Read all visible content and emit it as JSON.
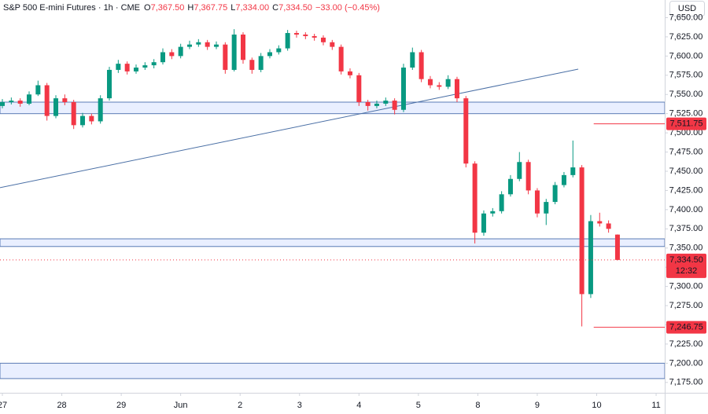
{
  "header": {
    "symbol": "S&P 500 E-mini Futures · 1h · CME",
    "ohlc": [
      {
        "key": "O",
        "value": "7,367.50"
      },
      {
        "key": "H",
        "value": "7,367.75"
      },
      {
        "key": "L",
        "value": "7,334.00"
      },
      {
        "key": "C",
        "value": "7,334.50"
      }
    ],
    "change": "−33.00 (−0.45%)",
    "currency": "USD"
  },
  "chart_data": {
    "type": "candlestick",
    "up_color": "#089981",
    "down_color": "#f23645",
    "xlim": [
      -0.04,
      11.145
    ],
    "ylim": [
      7161.5,
      7673
    ],
    "xticks": [
      {
        "value": 0,
        "label": "27"
      },
      {
        "value": 1,
        "label": "28"
      },
      {
        "value": 2,
        "label": "29"
      },
      {
        "value": 3,
        "label": "Jun"
      },
      {
        "value": 4,
        "label": "2"
      },
      {
        "value": 5,
        "label": "3"
      },
      {
        "value": 6,
        "label": "4"
      },
      {
        "value": 7,
        "label": "5"
      },
      {
        "value": 8,
        "label": "8"
      },
      {
        "value": 9,
        "label": "9"
      },
      {
        "value": 10,
        "label": "10"
      },
      {
        "value": 11,
        "label": "11"
      }
    ],
    "yticks": [
      {
        "value": 7175,
        "label": "7,175.00"
      },
      {
        "value": 7200,
        "label": "7,200.00"
      },
      {
        "value": 7225,
        "label": "7,225.00"
      },
      {
        "value": 7250,
        "label": "7,250.00"
      },
      {
        "value": 7275,
        "label": "7,275.00"
      },
      {
        "value": 7300,
        "label": "7,300.00"
      },
      {
        "value": 7325,
        "label": "7,325.00"
      },
      {
        "value": 7350,
        "label": "7,350.00"
      },
      {
        "value": 7375,
        "label": "7,375.00"
      },
      {
        "value": 7400,
        "label": "7,400.00"
      },
      {
        "value": 7425,
        "label": "7,425.00"
      },
      {
        "value": 7450,
        "label": "7,450.00"
      },
      {
        "value": 7475,
        "label": "7,475.00"
      },
      {
        "value": 7500,
        "label": "7,500.00"
      },
      {
        "value": 7525,
        "label": "7,525.00"
      },
      {
        "value": 7550,
        "label": "7,550.00"
      },
      {
        "value": 7575,
        "label": "7,575.00"
      },
      {
        "value": 7600,
        "label": "7,600.00"
      },
      {
        "value": 7625,
        "label": "7,625.00"
      },
      {
        "value": 7650,
        "label": "7,650.00"
      }
    ],
    "x": [
      0,
      0.15,
      0.3,
      0.45,
      0.6,
      0.75,
      0.9,
      1.05,
      1.2,
      1.35,
      1.5,
      1.65,
      1.8,
      1.95,
      2.1,
      2.25,
      2.4,
      2.55,
      2.7,
      2.85,
      3,
      3.15,
      3.3,
      3.45,
      3.6,
      3.75,
      3.9,
      4.05,
      4.2,
      4.35,
      4.5,
      4.65,
      4.8,
      4.95,
      5.1,
      5.25,
      5.4,
      5.55,
      5.7,
      5.85,
      6,
      6.15,
      6.3,
      6.45,
      6.6,
      6.75,
      6.9,
      7.05,
      7.2,
      7.35,
      7.5,
      7.65,
      7.8,
      7.95,
      8.1,
      8.25,
      8.4,
      8.55,
      8.7,
      8.85,
      9,
      9.15,
      9.3,
      9.45,
      9.6,
      9.75,
      9.9,
      10.05,
      10.2,
      10.35
    ],
    "open": [
      7535,
      7540,
      7542,
      7538,
      7550,
      7562,
      7522,
      7545,
      7540,
      7510,
      7522,
      7515,
      7545,
      7582,
      7590,
      7580,
      7585,
      7588,
      7592,
      7605,
      7600,
      7612,
      7615,
      7618,
      7612,
      7615,
      7582,
      7628,
      7595,
      7582,
      7600,
      7605,
      7610,
      7630,
      7628,
      7626,
      7624,
      7618,
      7612,
      7580,
      7575,
      7540,
      7535,
      7538,
      7542,
      7530,
      7585,
      7605,
      7570,
      7562,
      7560,
      7570,
      7545,
      7460,
      7370,
      7395,
      7398,
      7420,
      7440,
      7462,
      7425,
      7395,
      7410,
      7432,
      7445,
      7455,
      7290,
      7385,
      7382,
      7367.5
    ],
    "high": [
      7544,
      7546,
      7545,
      7554,
      7568,
      7565,
      7549,
      7550,
      7543,
      7526,
      7525,
      7549,
      7586,
      7595,
      7593,
      7589,
      7592,
      7596,
      7610,
      7609,
      7616,
      7620,
      7622,
      7621,
      7619,
      7618,
      7635,
      7631,
      7598,
      7604,
      7609,
      7614,
      7634,
      7633,
      7631,
      7629,
      7627,
      7621,
      7615,
      7584,
      7578,
      7543,
      7542,
      7546,
      7545,
      7590,
      7611,
      7608,
      7574,
      7566,
      7575,
      7573,
      7548,
      7463,
      7399,
      7402,
      7424,
      7445,
      7475,
      7465,
      7428,
      7414,
      7436,
      7449,
      7490,
      7458,
      7393,
      7396,
      7386,
      7367.75
    ],
    "low": [
      7532,
      7537,
      7534,
      7536,
      7548,
      7516,
      7519,
      7536,
      7505,
      7507,
      7511,
      7512,
      7542,
      7578,
      7576,
      7577,
      7582,
      7584,
      7589,
      7596,
      7597,
      7609,
      7612,
      7608,
      7609,
      7577,
      7580,
      7590,
      7577,
      7579,
      7597,
      7602,
      7607,
      7624,
      7622,
      7620,
      7614,
      7608,
      7576,
      7571,
      7535,
      7529,
      7532,
      7535,
      7524,
      7527,
      7582,
      7566,
      7558,
      7556,
      7557,
      7540,
      7455,
      7356,
      7366,
      7391,
      7395,
      7417,
      7437,
      7420,
      7390,
      7380,
      7407,
      7429,
      7442,
      7248,
      7285,
      7378,
      7370,
      7334
    ],
    "close": [
      7540,
      7542,
      7538,
      7550,
      7562,
      7522,
      7545,
      7540,
      7510,
      7522,
      7515,
      7545,
      7582,
      7590,
      7580,
      7585,
      7588,
      7592,
      7605,
      7600,
      7612,
      7615,
      7618,
      7612,
      7615,
      7582,
      7628,
      7595,
      7582,
      7600,
      7605,
      7610,
      7630,
      7628,
      7626,
      7624,
      7618,
      7612,
      7580,
      7575,
      7540,
      7535,
      7538,
      7542,
      7530,
      7585,
      7605,
      7570,
      7562,
      7560,
      7570,
      7545,
      7460,
      7370,
      7395,
      7398,
      7420,
      7440,
      7462,
      7425,
      7395,
      7410,
      7432,
      7445,
      7455,
      7290,
      7385,
      7382,
      7375,
      7334.5
    ],
    "zones": [
      {
        "low": 7525,
        "high": 7540
      },
      {
        "low": 7352,
        "high": 7362
      },
      {
        "low": 7180,
        "high": 7200
      }
    ],
    "trendline": {
      "x": [
        -0.04,
        9.69
      ],
      "y": [
        7428.6,
        7583
      ]
    },
    "levels": [
      {
        "value": 7511.75,
        "label": "7,511.75",
        "x": 9.95
      },
      {
        "value": 7246.75,
        "label": "7,246.75",
        "x": 9.95
      }
    ],
    "current": {
      "value": 7334.5,
      "label": "7,334.50",
      "countdown": "12:32"
    }
  }
}
